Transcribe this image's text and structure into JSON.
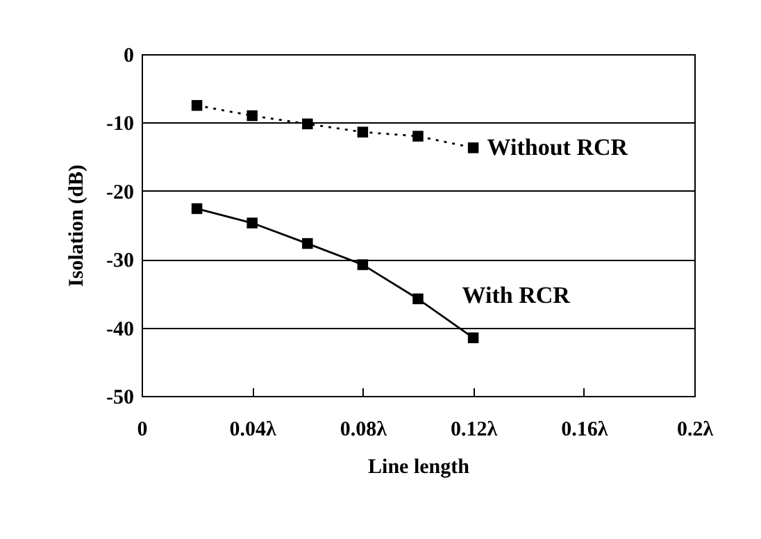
{
  "chart_data": {
    "type": "line",
    "xlabel": "Line length",
    "ylabel": "Isolation (dB)",
    "x": [
      0.02,
      0.04,
      0.06,
      0.08,
      0.1,
      0.12
    ],
    "series": [
      {
        "name": "Without RCR",
        "color": "#000000",
        "line_style": "dotted",
        "values": [
          -7.5,
          -9,
          -10.2,
          -11.4,
          -12,
          -13.7
        ]
      },
      {
        "name": "With RCR",
        "color": "#000000",
        "line_style": "solid",
        "values": [
          -22.6,
          -24.7,
          -27.7,
          -30.8,
          -35.8,
          -41.5
        ]
      }
    ],
    "xlim": [
      0,
      0.2
    ],
    "xticks": [
      0,
      {
        "value": 0.04,
        "label": "0.04λ"
      },
      {
        "value": 0.08,
        "label": "0.08λ"
      },
      {
        "value": 0.12,
        "label": "0.12λ"
      },
      {
        "value": 0.16,
        "label": "0.16λ"
      },
      {
        "value": 0.2,
        "label": "0.2λ"
      }
    ],
    "ylim": [
      -50,
      0
    ],
    "yticks": [
      -50,
      -40,
      -30,
      -20,
      -10,
      0
    ],
    "grid": "y",
    "marker": "square"
  }
}
